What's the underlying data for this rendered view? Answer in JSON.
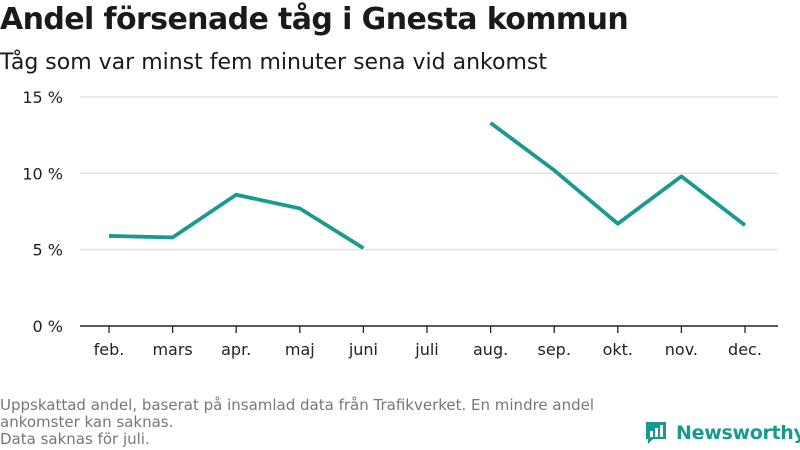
{
  "title": "Andel försenade tåg i Gnesta kommun",
  "subtitle": "Tåg som var minst fem minuter sena vid ankomst",
  "footnote": {
    "line1": "Uppskattad andel, baserat på insamlad data från Trafikverket. En mindre andel",
    "line2": "ankomster kan saknas.",
    "line3": "Data saknas för juli."
  },
  "brand": {
    "name": "Newsworthy",
    "icon": "newsworthy-logo-icon"
  },
  "colors": {
    "line": "#1a9a8e",
    "grid": "#dddddd",
    "axis": "#222222"
  },
  "chart_data": {
    "type": "line",
    "categories": [
      "feb.",
      "mars",
      "apr.",
      "maj",
      "juni",
      "juli",
      "aug.",
      "sep.",
      "okt.",
      "nov.",
      "dec."
    ],
    "values": [
      5.9,
      5.8,
      8.6,
      7.7,
      5.1,
      null,
      13.3,
      10.2,
      6.7,
      9.8,
      6.6
    ],
    "ylim": [
      0,
      15
    ],
    "yticks": [
      0,
      5,
      10,
      15
    ],
    "ytick_labels": [
      "0 %",
      "5 %",
      "10 %",
      "15 %"
    ],
    "grid": true,
    "xlabel": "",
    "ylabel": ""
  }
}
